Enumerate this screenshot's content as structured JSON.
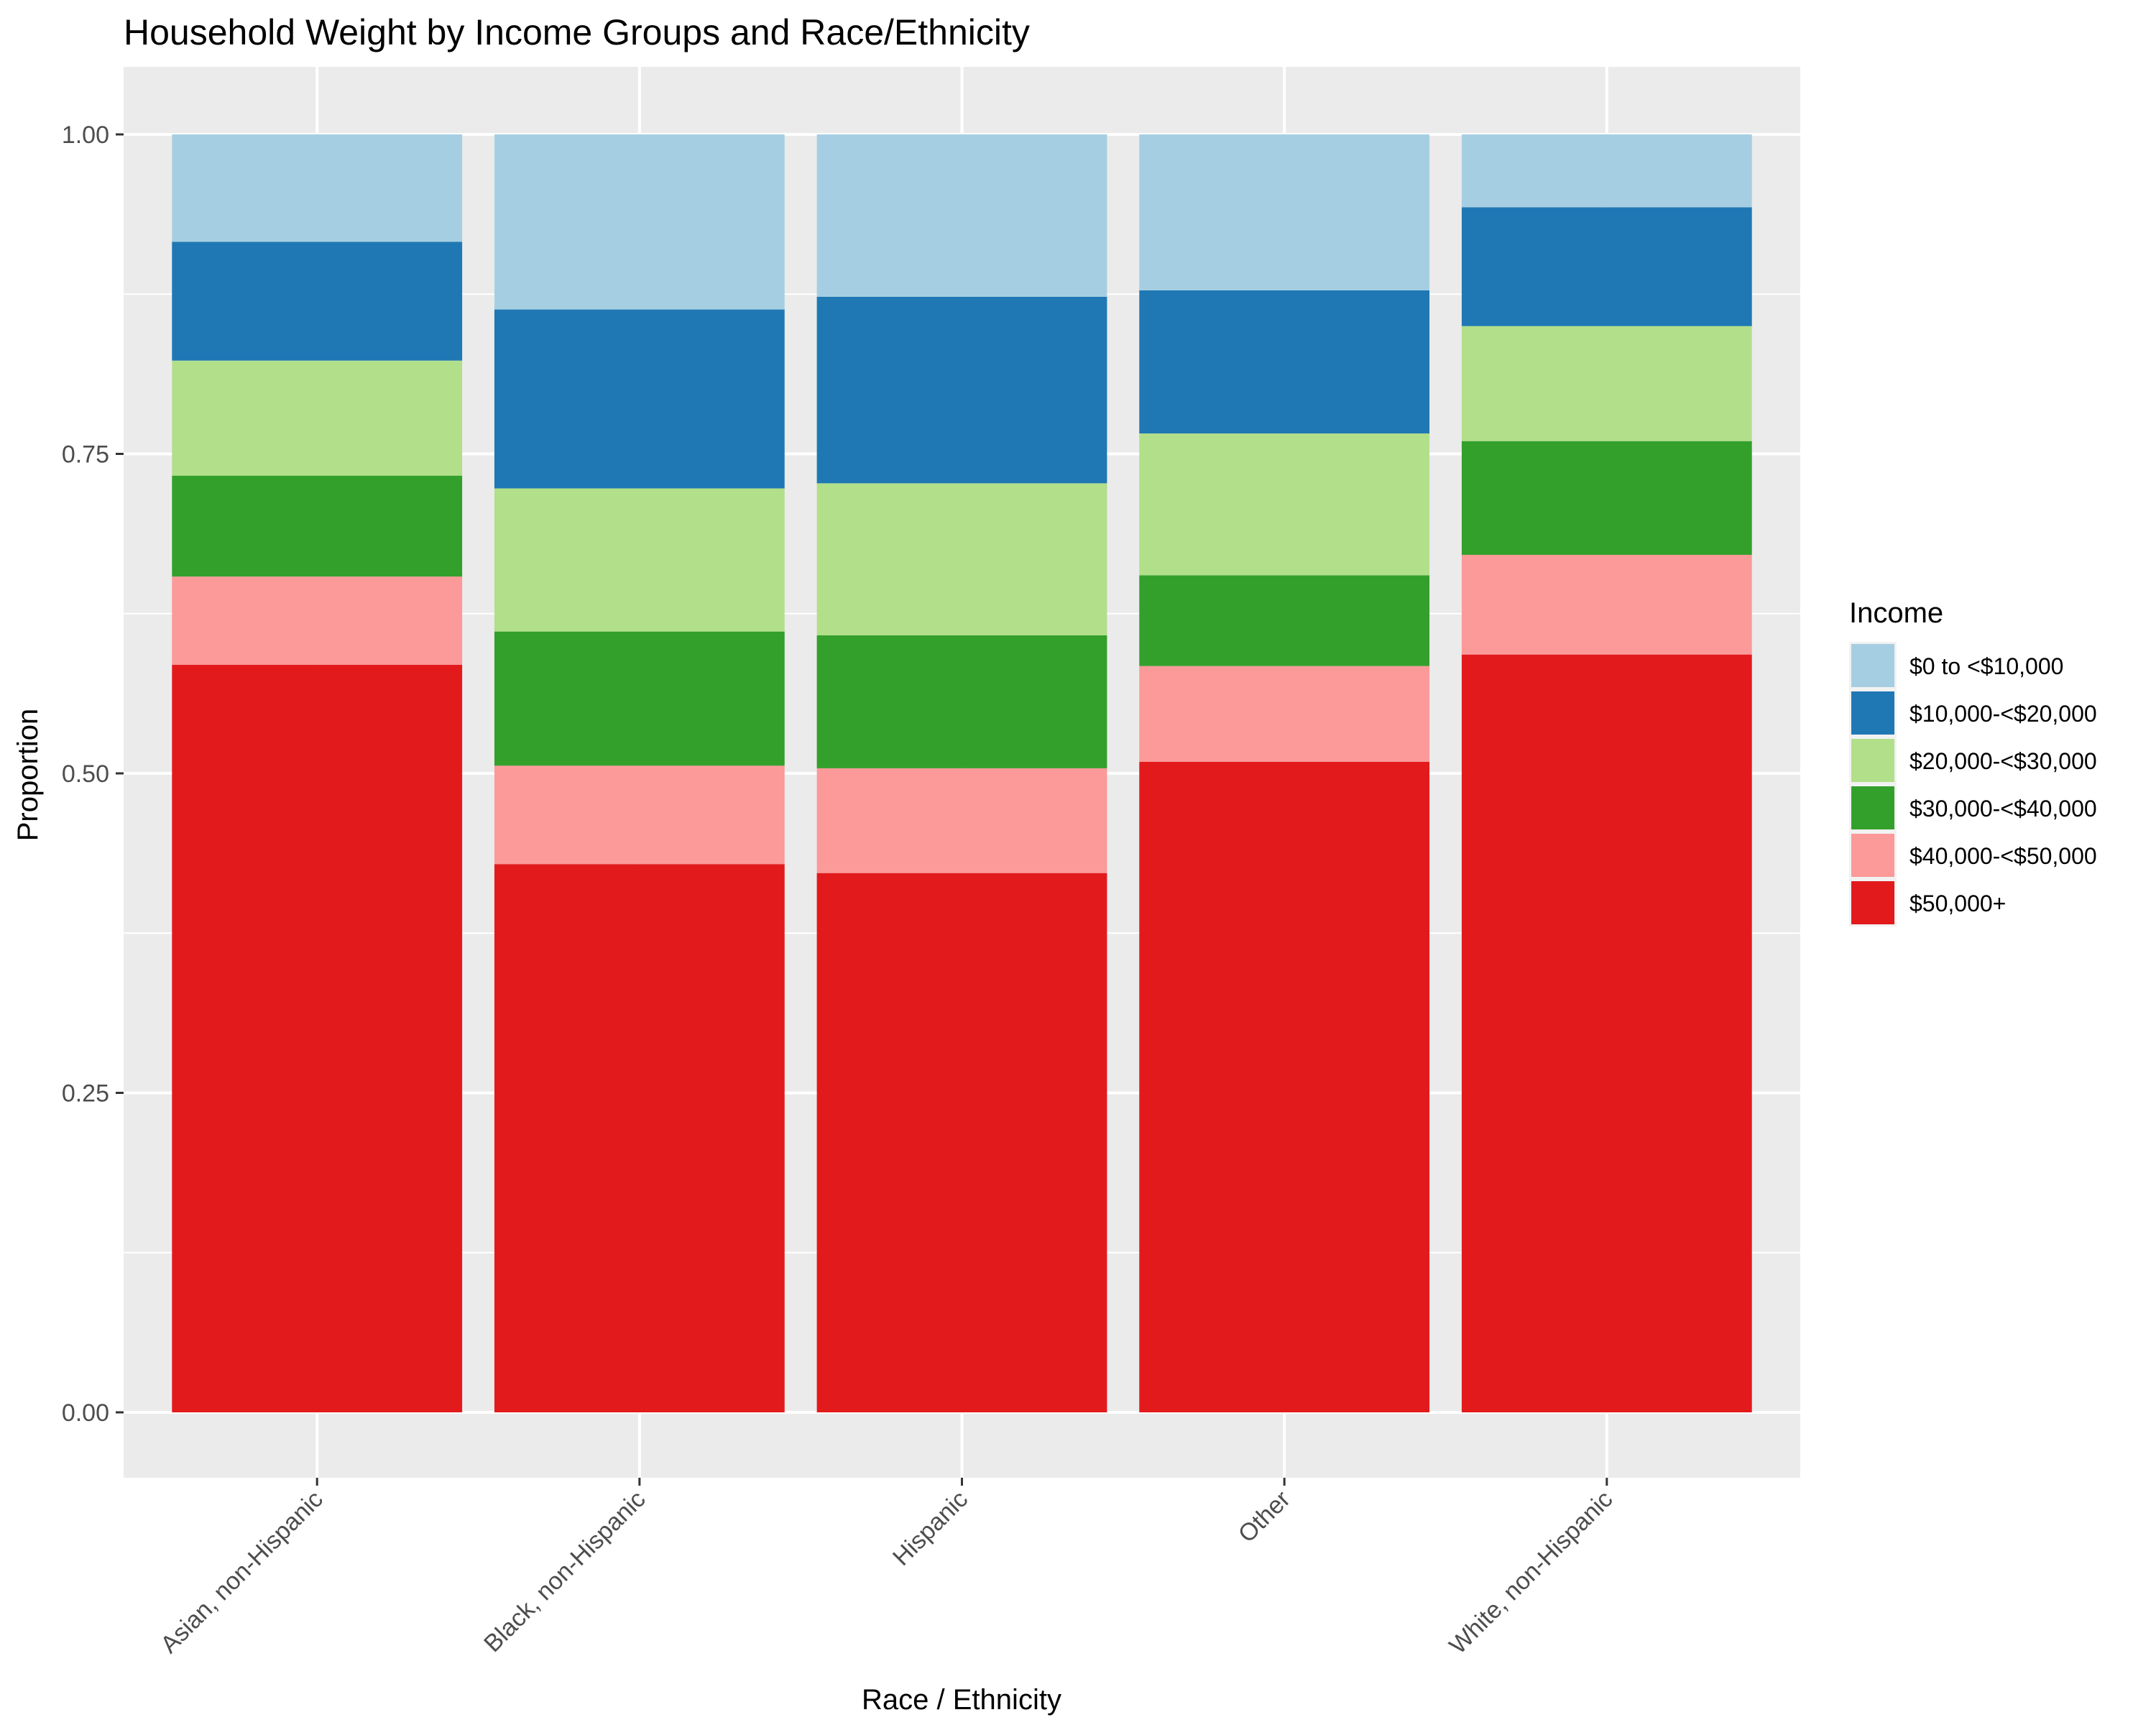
{
  "chart_data": {
    "type": "bar",
    "stacked": true,
    "title": "Household Weight by Income Groups and Race/Ethnicity",
    "xlabel": "Race / Ethnicity",
    "ylabel": "Proportion",
    "ylim": [
      0,
      1
    ],
    "yticks": [
      "0.00",
      "0.25",
      "0.50",
      "0.75",
      "1.00"
    ],
    "grid": true,
    "legend_position": "right",
    "legend_title": "Income",
    "categories": [
      "Asian, non-Hispanic",
      "Black, non-Hispanic",
      "Hispanic",
      "Other",
      "White, non-Hispanic"
    ],
    "series": [
      {
        "name": "$50,000+",
        "color": "#E31A1C",
        "values": [
          0.585,
          0.429,
          0.422,
          0.509,
          0.593
        ]
      },
      {
        "name": "$40,000-<$50,000",
        "color": "#FB9A99",
        "values": [
          0.069,
          0.077,
          0.082,
          0.075,
          0.078
        ]
      },
      {
        "name": "$30,000-<$40,000",
        "color": "#33A02C",
        "values": [
          0.079,
          0.105,
          0.104,
          0.071,
          0.089
        ]
      },
      {
        "name": "$20,000-<$30,000",
        "color": "#B2DF8A",
        "values": [
          0.09,
          0.112,
          0.119,
          0.111,
          0.09
        ]
      },
      {
        "name": "$10,000-<$20,000",
        "color": "#1F78B4",
        "values": [
          0.093,
          0.14,
          0.146,
          0.112,
          0.093
        ]
      },
      {
        "name": "$0 to <$10,000",
        "color": "#A6CEE3",
        "values": [
          0.084,
          0.137,
          0.127,
          0.122,
          0.057
        ]
      }
    ],
    "legend_order": [
      "$0 to <$10,000",
      "$10,000-<$20,000",
      "$20,000-<$30,000",
      "$30,000-<$40,000",
      "$40,000-<$50,000",
      "$50,000+"
    ]
  }
}
